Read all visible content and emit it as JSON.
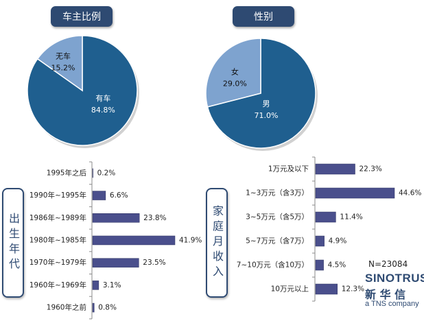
{
  "chart_data": [
    {
      "type": "pie",
      "title": "车主比例",
      "slices": [
        {
          "label": "有车",
          "value": 84.8,
          "value_label": "84.8%",
          "color": "#1f5f8f"
        },
        {
          "label": "无车",
          "value": 15.2,
          "value_label": "15.2%",
          "color": "#7ea3cf"
        }
      ]
    },
    {
      "type": "pie",
      "title": "性别",
      "slices": [
        {
          "label": "男",
          "value": 71.0,
          "value_label": "71.0%",
          "color": "#1f5f8f"
        },
        {
          "label": "女",
          "value": 29.0,
          "value_label": "29.0%",
          "color": "#7ea3cf"
        }
      ]
    },
    {
      "type": "bar",
      "orientation": "horizontal",
      "title": "出生年代",
      "categories": [
        "1995年之后",
        "1990年~1995年",
        "1986年~1989年",
        "1980年~1985年",
        "1970年~1979年",
        "1960年~1969年",
        "1960年之前"
      ],
      "values": [
        0.2,
        6.6,
        23.8,
        41.9,
        23.5,
        3.1,
        0.8
      ],
      "value_labels": [
        "0.2%",
        "6.6%",
        "23.8%",
        "41.9%",
        "23.5%",
        "3.1%",
        "0.8%"
      ],
      "color": "#4a4f8c",
      "xlim": [
        0,
        45
      ]
    },
    {
      "type": "bar",
      "orientation": "horizontal",
      "title": "家庭月收入",
      "categories": [
        "1万元及以下",
        "1~3万元（含3万）",
        "3~5万元（含5万）",
        "5~7万元（含7万）",
        "7~10万元（含10万）",
        "10万元以上"
      ],
      "values": [
        22.3,
        44.6,
        11.4,
        4.9,
        4.5,
        12.3
      ],
      "value_labels": [
        "22.3%",
        "44.6%",
        "11.4%",
        "4.9%",
        "4.5%",
        "12.3%"
      ],
      "color": "#4a4f8c",
      "xlim": [
        0,
        45
      ]
    }
  ],
  "footer": {
    "sample_size": "N=23084",
    "logo_line1": "SINOTRUST",
    "logo_line2": "新 华 信",
    "logo_line3": "a TNS company"
  }
}
